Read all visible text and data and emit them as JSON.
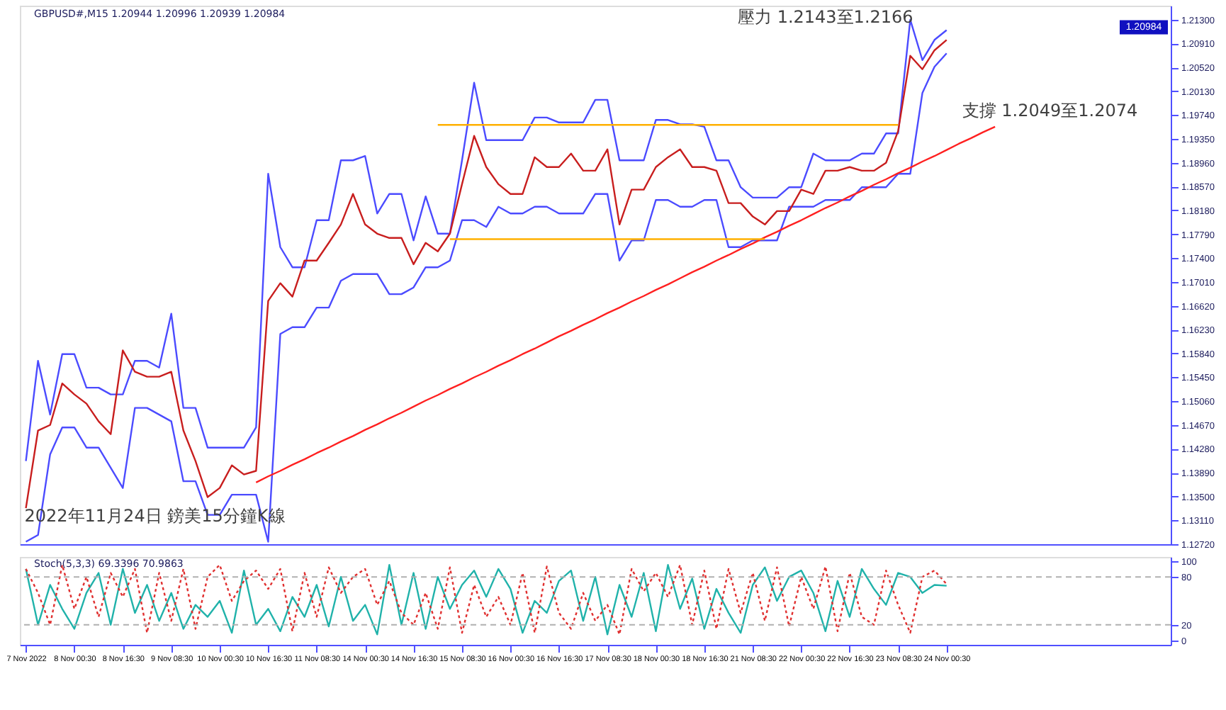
{
  "chart_data": [
    {
      "type": "line",
      "title": "GBPUSD#,M15 1.20944 1.20996 1.20939 1.20984",
      "ylim": [
        1.1272,
        1.2153
      ],
      "categories": [
        null,
        null,
        null,
        null,
        null,
        null,
        null,
        null,
        null,
        null,
        null,
        null,
        null,
        null,
        null,
        null,
        null,
        null,
        null,
        null,
        null,
        null,
        null,
        null,
        null,
        null,
        null,
        null,
        null,
        null,
        null,
        null,
        null,
        null,
        null,
        null,
        null,
        null,
        null,
        null,
        null,
        null,
        null,
        null,
        null,
        null,
        null,
        null,
        null,
        null,
        null,
        null,
        null,
        null,
        null,
        null,
        null,
        null,
        null,
        null,
        null,
        null,
        null,
        null,
        null,
        null,
        null,
        null,
        null,
        null,
        null,
        null,
        null,
        null,
        null,
        null,
        null,
        null,
        null,
        null,
        null,
        null,
        null,
        null,
        null,
        null,
        null,
        null,
        null,
        null,
        null,
        null,
        null,
        null,
        null
      ],
      "yticks": [
        {
          "value": 1.213,
          "label": "1.21300"
        },
        {
          "value": 1.2091,
          "label": "1.20910"
        },
        {
          "value": 1.2052,
          "label": "1.20520"
        },
        {
          "value": 1.2013,
          "label": "1.20130"
        },
        {
          "value": 1.1974,
          "label": "1.19740"
        },
        {
          "value": 1.1935,
          "label": "1.19350"
        },
        {
          "value": 1.1896,
          "label": "1.18960"
        },
        {
          "value": 1.1857,
          "label": "1.18570"
        },
        {
          "value": 1.1818,
          "label": "1.18180"
        },
        {
          "value": 1.1779,
          "label": "1.17790"
        },
        {
          "value": 1.174,
          "label": "1.17400"
        },
        {
          "value": 1.1701,
          "label": "1.17010"
        },
        {
          "value": 1.1662,
          "label": "1.16620"
        },
        {
          "value": 1.1623,
          "label": "1.16230"
        },
        {
          "value": 1.1584,
          "label": "1.15840"
        },
        {
          "value": 1.1545,
          "label": "1.15450"
        },
        {
          "value": 1.1506,
          "label": "1.15060"
        },
        {
          "value": 1.1467,
          "label": "1.14670"
        },
        {
          "value": 1.1428,
          "label": "1.14280"
        },
        {
          "value": 1.1389,
          "label": "1.13890"
        },
        {
          "value": 1.135,
          "label": "1.13500"
        },
        {
          "value": 1.1311,
          "label": "1.13110"
        },
        {
          "value": 1.1272,
          "label": "1.12720"
        }
      ],
      "grid": false,
      "series": [
        {
          "color": "#4b4bff",
          "values": [
            1.1408,
            1.1572,
            1.1484,
            1.1583,
            1.1583,
            1.1528,
            1.1528,
            1.1517,
            1.1517,
            1.1572,
            1.1572,
            1.1561,
            1.1649,
            1.1495,
            1.1495,
            1.143,
            1.143,
            1.143,
            1.143,
            1.1463,
            1.1878,
            1.1758,
            1.1725,
            1.1725,
            1.1802,
            1.1802,
            1.19,
            1.19,
            1.1907,
            1.1813,
            1.1845,
            1.1845,
            1.1769,
            1.1841,
            1.178,
            1.178,
            1.19,
            1.2027,
            1.1933,
            1.1933,
            1.1933,
            1.1933,
            1.197,
            1.197,
            1.1962,
            1.1962,
            1.1962,
            1.1999,
            1.1999,
            1.19,
            1.19,
            1.19,
            1.1966,
            1.1966,
            1.1959,
            1.1959,
            1.1955,
            1.19,
            1.19,
            1.1856,
            1.1839,
            1.1839,
            1.1839,
            1.1856,
            1.1856,
            1.1911,
            1.19,
            1.19,
            1.19,
            1.1911,
            1.1911,
            1.1944,
            1.1944,
            1.213,
            1.2064,
            1.2097,
            1.2113,
            null,
            null,
            null,
            null,
            null,
            null,
            null,
            null,
            null,
            null,
            null,
            null,
            null,
            null,
            null,
            null,
            null,
            null
          ]
        },
        {
          "color": "#4b4bff",
          "values": [
            1.1276,
            1.1287,
            1.1419,
            1.1463,
            1.1463,
            1.143,
            1.143,
            1.1397,
            1.1364,
            1.1495,
            1.1495,
            1.1484,
            1.1473,
            1.1375,
            1.1375,
            1.132,
            1.132,
            1.1353,
            1.1353,
            1.1353,
            1.1276,
            1.1616,
            1.1627,
            1.1627,
            1.1659,
            1.1659,
            1.1703,
            1.1714,
            1.1714,
            1.1714,
            1.1681,
            1.1681,
            1.1692,
            1.1725,
            1.1725,
            1.1736,
            1.1802,
            1.1802,
            1.1791,
            1.1824,
            1.1813,
            1.1813,
            1.1824,
            1.1824,
            1.1813,
            1.1813,
            1.1813,
            1.1845,
            1.1845,
            1.1736,
            1.1769,
            1.1769,
            1.1835,
            1.1835,
            1.1824,
            1.1824,
            1.1835,
            1.1835,
            1.1758,
            1.1758,
            1.1769,
            1.1769,
            1.1769,
            1.1824,
            1.1824,
            1.1824,
            1.1835,
            1.1835,
            1.1835,
            1.1856,
            1.1856,
            1.1856,
            1.1878,
            1.1878,
            1.201,
            1.2053,
            1.2075,
            null,
            null,
            null,
            null,
            null,
            null,
            null,
            null,
            null,
            null,
            null,
            null,
            null,
            null,
            null,
            null,
            null,
            null
          ]
        },
        {
          "color": "#c81e1e",
          "values": [
            1.1331,
            1.1458,
            1.1467,
            1.1535,
            1.1517,
            1.1502,
            1.1473,
            1.1452,
            1.1589,
            1.1554,
            1.1546,
            1.1546,
            1.1554,
            1.1458,
            1.1408,
            1.1349,
            1.1364,
            1.1401,
            1.1386,
            1.1392,
            1.167,
            1.1699,
            1.1677,
            1.1736,
            1.1736,
            1.1765,
            1.1795,
            1.1845,
            1.1795,
            1.178,
            1.1773,
            1.1773,
            1.173,
            1.1765,
            1.1751,
            1.178,
            1.1861,
            1.194,
            1.1889,
            1.1861,
            1.1845,
            1.1845,
            1.1905,
            1.1889,
            1.1889,
            1.1911,
            1.1883,
            1.1883,
            1.1918,
            1.1795,
            1.1852,
            1.1852,
            1.1889,
            1.1905,
            1.1918,
            1.1889,
            1.1889,
            1.1883,
            1.183,
            1.183,
            1.1808,
            1.1795,
            1.1817,
            1.1817,
            1.1852,
            1.1845,
            1.1883,
            1.1883,
            1.1889,
            1.1883,
            1.1883,
            1.1896,
            1.1948,
            1.2071,
            1.2049,
            1.208,
            1.2097,
            null,
            null,
            null,
            null,
            null,
            null,
            null,
            null,
            null,
            null,
            null,
            null,
            null,
            null,
            null,
            null,
            null,
            null
          ]
        },
        {
          "color": "#ff2020",
          "values": [
            null,
            null,
            null,
            null,
            null,
            null,
            null,
            null,
            null,
            null,
            null,
            null,
            null,
            null,
            null,
            null,
            null,
            null,
            null,
            1.1373,
            1.1383,
            1.1392,
            1.1402,
            1.1411,
            1.1421,
            1.143,
            1.144,
            1.1449,
            1.1459,
            1.1468,
            1.1478,
            1.1487,
            1.1497,
            1.1507,
            1.1516,
            1.1526,
            1.1535,
            1.1545,
            1.1554,
            1.1564,
            1.1573,
            1.1583,
            1.1592,
            1.1602,
            1.1612,
            1.1621,
            1.1631,
            1.164,
            1.165,
            1.1659,
            1.1669,
            1.1678,
            1.1688,
            1.1697,
            1.1707,
            1.1717,
            1.1726,
            1.1736,
            1.1745,
            1.1755,
            1.1764,
            1.1774,
            1.1783,
            1.1793,
            1.1802,
            1.1812,
            1.1822,
            1.1831,
            1.1841,
            1.185,
            1.186,
            1.1869,
            1.1879,
            1.1888,
            1.1898,
            1.1907,
            1.1917,
            1.1927,
            1.1936,
            1.1946,
            1.1955,
            null,
            null,
            null,
            null,
            null,
            null,
            null,
            null,
            null,
            null,
            null,
            null,
            null,
            null
          ]
        },
        {
          "color": "#ffb000",
          "values": [
            null,
            null,
            null,
            null,
            null,
            null,
            null,
            null,
            null,
            null,
            null,
            null,
            null,
            null,
            null,
            null,
            null,
            null,
            null,
            null,
            null,
            null,
            null,
            null,
            null,
            null,
            null,
            null,
            null,
            null,
            null,
            null,
            null,
            null,
            1.1958,
            1.1958,
            1.1958,
            1.1958,
            1.1958,
            1.1958,
            1.1958,
            1.1958,
            1.1958,
            1.1958,
            1.1958,
            1.1958,
            1.1958,
            1.1958,
            1.1958,
            1.1958,
            1.1958,
            1.1958,
            1.1958,
            1.1958,
            1.1958,
            1.1958,
            1.1958,
            1.1958,
            1.1958,
            1.1958,
            1.1958,
            1.1958,
            1.1958,
            1.1958,
            1.1958,
            1.1958,
            1.1958,
            1.1958,
            1.1958,
            1.1958,
            1.1958,
            1.1958,
            1.1958,
            null,
            null,
            null,
            null,
            null,
            null,
            null,
            null,
            null,
            null,
            null,
            null,
            null,
            null,
            null,
            null,
            null,
            null,
            null,
            null,
            null,
            null
          ]
        },
        {
          "color": "#ffb000",
          "values": [
            null,
            null,
            null,
            null,
            null,
            null,
            null,
            null,
            null,
            null,
            null,
            null,
            null,
            null,
            null,
            null,
            null,
            null,
            null,
            null,
            null,
            null,
            null,
            null,
            null,
            null,
            null,
            null,
            null,
            null,
            null,
            null,
            null,
            null,
            null,
            1.1771,
            1.1771,
            1.1771,
            1.1771,
            1.1771,
            1.1771,
            1.1771,
            1.1771,
            1.1771,
            1.1771,
            1.1771,
            1.1771,
            1.1771,
            1.1771,
            1.1771,
            1.1771,
            1.1771,
            1.1771,
            1.1771,
            1.1771,
            1.1771,
            1.1771,
            1.1771,
            1.1771,
            1.1771,
            1.1771,
            1.1771,
            null,
            null,
            null,
            null,
            null,
            null,
            null,
            null,
            null,
            null,
            null,
            null,
            null,
            null,
            null,
            null,
            null,
            null,
            null,
            null,
            null,
            null,
            null,
            null,
            null,
            null,
            null,
            null,
            null,
            null,
            null,
            null,
            null
          ]
        }
      ],
      "annotations": [
        "壓力 1.2143至1.2166",
        "支撐 1.2049至1.2074",
        "2022年11月24日 鎊美15分鐘K線",
        "1.20984"
      ]
    },
    {
      "type": "line",
      "title": "Stoch(5,3,3) 69.3396 70.9863",
      "ylim": [
        -5,
        105
      ],
      "yticks": [
        0,
        20,
        80,
        100
      ],
      "categories": [
        "7 Nov 2022",
        null,
        null,
        null,
        "8 Nov 00:30",
        null,
        null,
        null,
        "8 Nov 16:30",
        null,
        null,
        null,
        "9 Nov 08:30",
        null,
        null,
        null,
        "10 Nov 00:30",
        null,
        null,
        null,
        "10 Nov 16:30",
        null,
        null,
        null,
        "11 Nov 08:30",
        null,
        null,
        null,
        "14 Nov 00:30",
        null,
        null,
        null,
        "14 Nov 16:30",
        null,
        null,
        null,
        "15 Nov 08:30",
        null,
        null,
        null,
        "16 Nov 00:30",
        null,
        null,
        null,
        "16 Nov 16:30",
        null,
        null,
        null,
        "17 Nov 08:30",
        null,
        null,
        null,
        "18 Nov 00:30",
        null,
        null,
        null,
        "18 Nov 16:30",
        null,
        null,
        null,
        "21 Nov 08:30",
        null,
        null,
        null,
        "22 Nov 00:30",
        null,
        null,
        null,
        "22 Nov 16:30",
        null,
        null,
        null,
        "23 Nov 08:30",
        null,
        null,
        null,
        "24 Nov 00:30",
        null,
        null,
        null,
        null,
        null,
        null,
        null,
        null,
        null,
        null,
        null,
        null,
        null,
        null,
        null,
        null,
        null,
        null
      ],
      "grid": false,
      "series": [
        {
          "color": "#20b2aa",
          "line_style": "solid",
          "values": [
            90,
            20,
            70,
            40,
            15,
            60,
            85,
            20,
            90,
            35,
            70,
            25,
            60,
            15,
            45,
            30,
            50,
            10,
            88,
            20,
            40,
            12,
            55,
            30,
            70,
            18,
            80,
            25,
            45,
            8,
            95,
            20,
            85,
            15,
            80,
            40,
            70,
            88,
            55,
            90,
            65,
            10,
            50,
            35,
            75,
            88,
            25,
            80,
            8,
            70,
            30,
            85,
            12,
            95,
            40,
            78,
            15,
            65,
            35,
            10,
            70,
            92,
            50,
            80,
            88,
            60,
            12,
            75,
            30,
            90,
            65,
            45,
            85,
            80,
            60,
            70,
            69,
            null,
            null,
            null,
            null,
            null,
            null,
            null,
            null,
            null,
            null,
            null,
            null,
            null,
            null,
            null,
            null,
            null,
            null
          ]
        },
        {
          "color": "#e03030",
          "line_style": "dotted",
          "values": [
            90,
            60,
            20,
            95,
            40,
            80,
            30,
            85,
            55,
            90,
            10,
            85,
            25,
            90,
            15,
            80,
            95,
            50,
            75,
            88,
            65,
            90,
            12,
            85,
            30,
            92,
            60,
            80,
            90,
            45,
            75,
            35,
            20,
            60,
            15,
            92,
            10,
            70,
            30,
            55,
            20,
            85,
            10,
            93,
            35,
            15,
            60,
            25,
            45,
            8,
            90,
            62,
            85,
            55,
            95,
            20,
            88,
            15,
            90,
            35,
            85,
            25,
            92,
            18,
            80,
            40,
            93,
            12,
            85,
            30,
            20,
            88,
            45,
            10,
            80,
            88,
            71,
            null,
            null,
            null,
            null,
            null,
            null,
            null,
            null,
            null,
            null,
            null,
            null,
            null,
            null,
            null,
            null,
            null,
            null
          ]
        }
      ],
      "ref_lines": [
        {
          "axis": "y",
          "value": 20,
          "color": "#b0b0b0",
          "line_style": "dashed"
        },
        {
          "axis": "y",
          "value": 80,
          "color": "#b0b0b0",
          "line_style": "dashed"
        }
      ]
    }
  ]
}
